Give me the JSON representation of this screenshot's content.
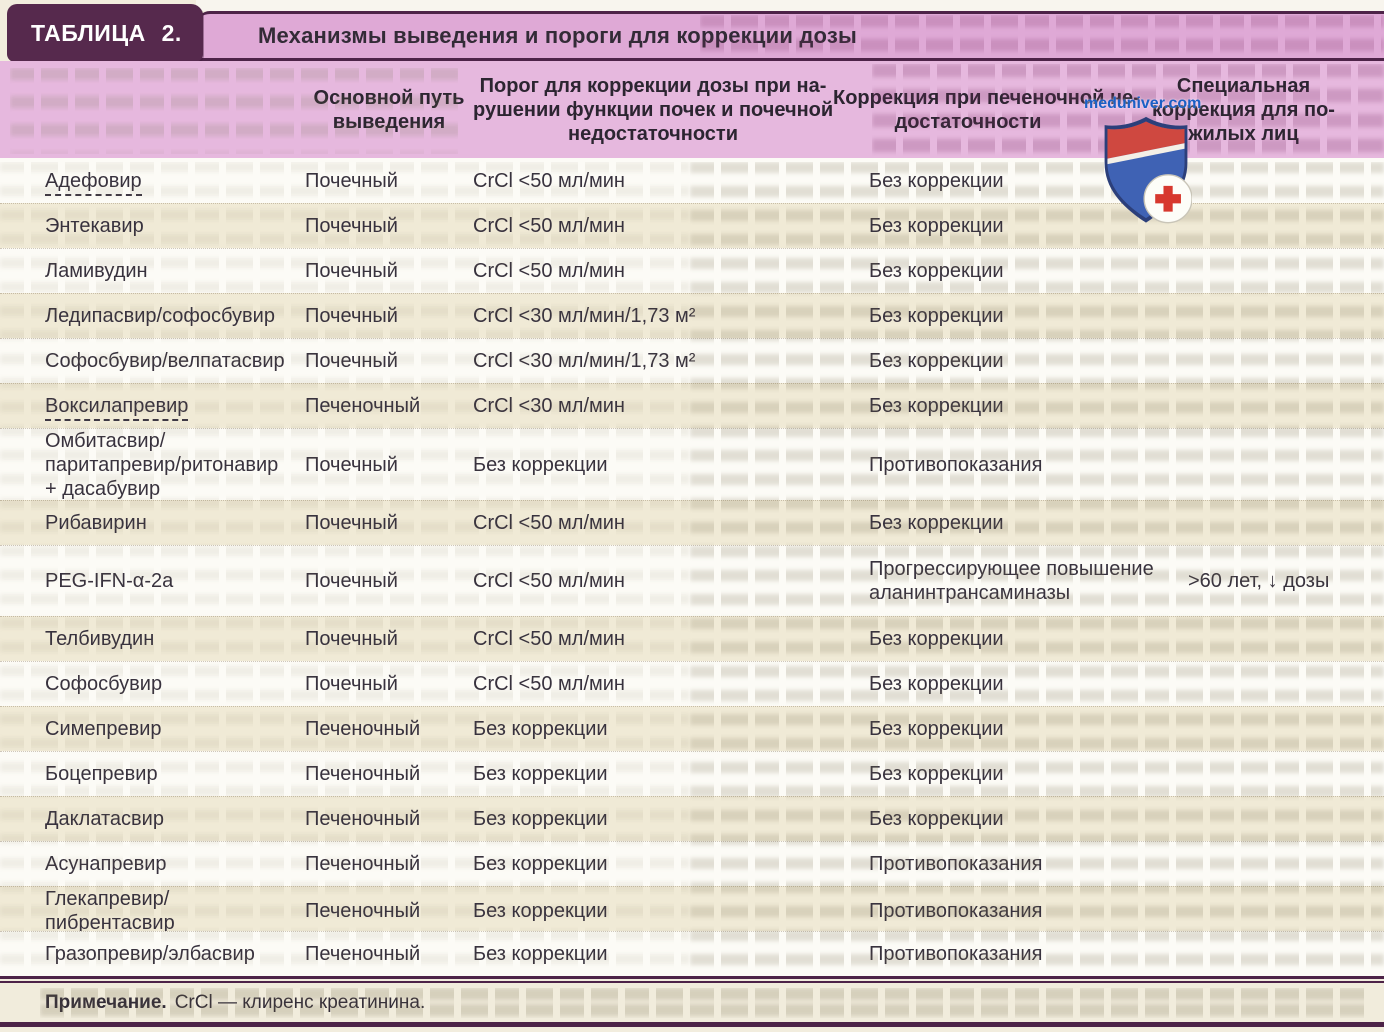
{
  "table": {
    "tab_label": "ТАБЛИЦА 2.",
    "title": "Механизмы выведения и пороги для коррекции дозы",
    "header": {
      "drug": "",
      "route": {
        "lines": [
          "Основной путь",
          "выведения"
        ]
      },
      "renal": {
        "lines": [
          "Порог для коррекции дозы при на-",
          "рушении функции почек и почечной",
          "недостаточности"
        ]
      },
      "hepatic": {
        "lines": [
          "Коррекция при печеночной не-",
          "достаточности"
        ]
      },
      "elderly": {
        "lines": [
          "Специальная",
          "коррекция для по-",
          "жилых лиц"
        ]
      }
    },
    "rows": [
      {
        "drug": "Адефовир",
        "dashed_underline": true,
        "route": "Почечный",
        "renal": "CrCl <50 мл/мин",
        "hepatic": "Без коррекции",
        "elderly": ""
      },
      {
        "drug": "Энтекавир",
        "dashed_underline": false,
        "route": "Почечный",
        "renal": "CrCl <50 мл/мин",
        "hepatic": "Без коррекции",
        "elderly": ""
      },
      {
        "drug": "Ламивудин",
        "dashed_underline": false,
        "route": "Почечный",
        "renal": "CrCl <50 мл/мин",
        "hepatic": "Без коррекции",
        "elderly": ""
      },
      {
        "drug": "Ледипасвир/софосбувир",
        "dashed_underline": false,
        "route": "Почечный",
        "renal": "CrCl <30 мл/мин/1,73 м²",
        "hepatic": "Без коррекции",
        "elderly": ""
      },
      {
        "drug": "Софосбувир/велпатасвир",
        "dashed_underline": false,
        "route": "Почечный",
        "renal": "CrCl <30 мл/мин/1,73 м²",
        "hepatic": "Без коррекции",
        "elderly": ""
      },
      {
        "drug": "Воксилапревир",
        "dashed_underline": true,
        "route": "Печеночный",
        "renal": "CrCl <30 мл/мин",
        "hepatic": "Без коррекции",
        "elderly": ""
      },
      {
        "drug": "Омбитасвир/паритапревир/ритонавир + дасабувир",
        "dashed_underline": false,
        "route": "Почечный",
        "renal": "Без коррекции",
        "hepatic": "Противопоказания",
        "elderly": ""
      },
      {
        "drug": "Рибавирин",
        "dashed_underline": false,
        "route": "Почечный",
        "renal": "CrCl <50 мл/мин",
        "hepatic": "Без коррекции",
        "elderly": ""
      },
      {
        "drug": "PEG-IFN-α-2a",
        "dashed_underline": false,
        "route": "Почечный",
        "renal": "CrCl <50 мл/мин",
        "hepatic": "Прогрессирующее повышение аланинтрансаминазы",
        "elderly": ">60 лет, ↓ дозы"
      },
      {
        "drug": "Телбивудин",
        "dashed_underline": false,
        "route": "Почечный",
        "renal": "CrCl <50 мл/мин",
        "hepatic": "Без коррекции",
        "elderly": ""
      },
      {
        "drug": "Софосбувир",
        "dashed_underline": false,
        "route": "Почечный",
        "renal": "CrCl <50 мл/мин",
        "hepatic": "Без коррекции",
        "elderly": ""
      },
      {
        "drug": "Симепревир",
        "dashed_underline": false,
        "route": "Печеночный",
        "renal": "Без коррекции",
        "hepatic": "Без коррекции",
        "elderly": ""
      },
      {
        "drug": "Боцепревир",
        "dashed_underline": false,
        "route": "Печеночный",
        "renal": "Без коррекции",
        "hepatic": "Без коррекции",
        "elderly": ""
      },
      {
        "drug": "Даклатасвир",
        "dashed_underline": false,
        "route": "Печеночный",
        "renal": "Без коррекции",
        "hepatic": "Без коррекции",
        "elderly": ""
      },
      {
        "drug": "Асунапревир",
        "dashed_underline": false,
        "route": "Печеночный",
        "renal": "Без коррекции",
        "hepatic": "Противопоказания",
        "elderly": ""
      },
      {
        "drug": "Глекапревир/пибрентасвир",
        "dashed_underline": false,
        "route": "Печеночный",
        "renal": "Без коррекции",
        "hepatic": "Противопоказания",
        "elderly": ""
      },
      {
        "drug": "Гразопревир/элбасвир",
        "dashed_underline": false,
        "route": "Печеночный",
        "renal": "Без коррекции",
        "hepatic": "Противопоказания",
        "elderly": ""
      }
    ],
    "note": {
      "label": "Примечание.",
      "text": "CrCl — клиренс креатинина."
    }
  },
  "watermark": {
    "text": "meduniver.com",
    "logo": "shield-with-red-cross"
  },
  "colors": {
    "tab_bg": "#56294d",
    "banner_bg": "#dfa9d6",
    "header_bg": "#e6b8de",
    "rule_purple": "#4d2348",
    "row_white": "#fcfbf6",
    "row_cream": "#f0ead6",
    "watermark_blue": "#1b5fc5",
    "shield_red": "#cf4840",
    "shield_blue": "#3f62b4",
    "cross_red": "#d7382e"
  }
}
